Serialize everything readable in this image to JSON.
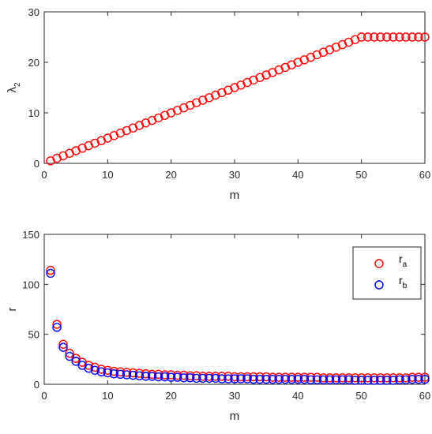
{
  "chart_data": [
    {
      "type": "scatter",
      "title": "",
      "xlabel": "m",
      "ylabel": "λ",
      "ylabel_subscript": "2",
      "xlim": [
        0,
        60
      ],
      "ylim": [
        0,
        30
      ],
      "xticks": [
        "0",
        "10",
        "20",
        "30",
        "40",
        "50",
        "60"
      ],
      "yticks": [
        "0",
        "10",
        "20",
        "30"
      ],
      "grid": false,
      "x": [
        1,
        2,
        3,
        4,
        5,
        6,
        7,
        8,
        9,
        10,
        11,
        12,
        13,
        14,
        15,
        16,
        17,
        18,
        19,
        20,
        21,
        22,
        23,
        24,
        25,
        26,
        27,
        28,
        29,
        30,
        31,
        32,
        33,
        34,
        35,
        36,
        37,
        38,
        39,
        40,
        41,
        42,
        43,
        44,
        45,
        46,
        47,
        48,
        49,
        50,
        51,
        52,
        53,
        54,
        55,
        56,
        57,
        58,
        59,
        60
      ],
      "series": [
        {
          "color": "#ff0000",
          "marker": "circle",
          "values": [
            0.5,
            1.0,
            1.5,
            2.0,
            2.5,
            3.0,
            3.5,
            4.0,
            4.5,
            5.0,
            5.5,
            6.0,
            6.5,
            7.0,
            7.5,
            8.0,
            8.5,
            9.0,
            9.5,
            10.0,
            10.5,
            11.0,
            11.5,
            12.0,
            12.5,
            13.0,
            13.5,
            14.0,
            14.5,
            15.0,
            15.5,
            16.0,
            16.5,
            17.0,
            17.5,
            18.0,
            18.5,
            19.0,
            19.5,
            20.0,
            20.5,
            21.0,
            21.5,
            22.0,
            22.5,
            23.0,
            23.5,
            24.0,
            24.5,
            25.0,
            25.0,
            25.0,
            25.0,
            25.0,
            25.0,
            25.0,
            25.0,
            25.0,
            25.0,
            25.0
          ]
        }
      ]
    },
    {
      "type": "scatter",
      "title": "",
      "xlabel": "m",
      "ylabel": "r",
      "xlim": [
        0,
        60
      ],
      "ylim": [
        0,
        150
      ],
      "xticks": [
        "0",
        "10",
        "20",
        "30",
        "40",
        "50",
        "60"
      ],
      "yticks": [
        "0",
        "50",
        "100",
        "150"
      ],
      "grid": false,
      "legend_position": "top-right",
      "x": [
        1,
        2,
        3,
        4,
        5,
        6,
        7,
        8,
        9,
        10,
        11,
        12,
        13,
        14,
        15,
        16,
        17,
        18,
        19,
        20,
        21,
        22,
        23,
        24,
        25,
        26,
        27,
        28,
        29,
        30,
        31,
        32,
        33,
        34,
        35,
        36,
        37,
        38,
        39,
        40,
        41,
        42,
        43,
        44,
        45,
        46,
        47,
        48,
        49,
        50,
        51,
        52,
        53,
        54,
        55,
        56,
        57,
        58,
        59,
        60
      ],
      "series": [
        {
          "name": "r",
          "name_subscript": "a",
          "color": "#ff0000",
          "marker": "circle",
          "values": [
            114,
            60,
            40,
            31,
            26,
            22,
            19,
            17,
            15,
            14,
            13,
            12.5,
            12,
            11.5,
            11,
            10.5,
            10,
            10,
            9.5,
            9.5,
            9,
            9,
            8.5,
            8.5,
            8,
            8,
            8,
            8,
            8,
            7.5,
            7.5,
            7.5,
            7.5,
            7.5,
            7.5,
            7,
            7,
            7,
            7,
            7,
            7,
            7,
            7,
            6.5,
            6.5,
            6.5,
            6.5,
            6.5,
            6.5,
            6.5,
            6.5,
            6.5,
            6.5,
            6.5,
            6.5,
            6.5,
            6.5,
            7,
            7,
            7
          ]
        },
        {
          "name": "r",
          "name_subscript": "b",
          "color": "#0000ff",
          "marker": "circle",
          "values": [
            111,
            57,
            37,
            28,
            23,
            19,
            16,
            14,
            12.5,
            11.5,
            10.5,
            10,
            9.5,
            9,
            8.5,
            8,
            8,
            7.5,
            7.5,
            7,
            7,
            6.5,
            6.5,
            6,
            6,
            6,
            6,
            5.5,
            5.5,
            5.5,
            5.5,
            5.5,
            5,
            5,
            5,
            5,
            5,
            5,
            5,
            5,
            5,
            4.5,
            4.5,
            4.5,
            4.5,
            4.5,
            4.5,
            4.5,
            4,
            4,
            4,
            4,
            4,
            4,
            4,
            4.5,
            4.5,
            5,
            5,
            5
          ]
        }
      ]
    }
  ]
}
